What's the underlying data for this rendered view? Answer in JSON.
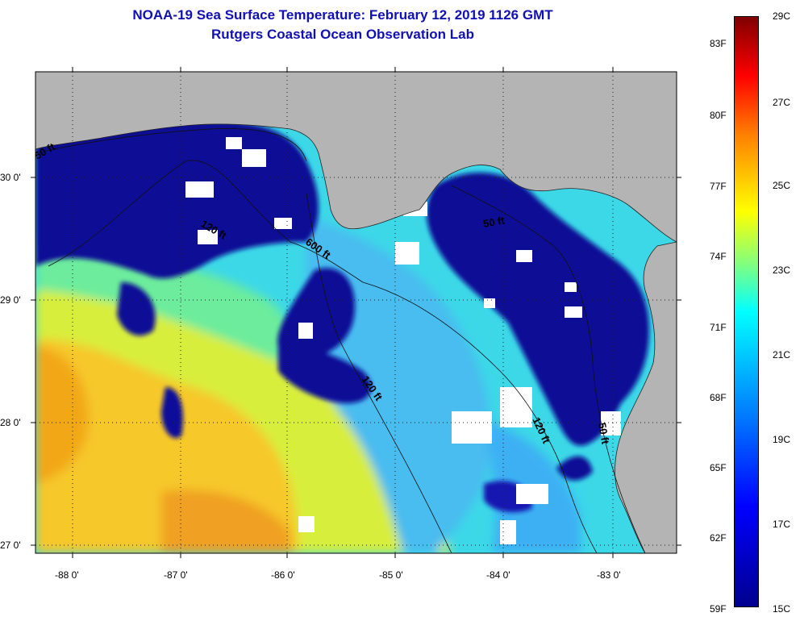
{
  "title": {
    "line1": "NOAA-19 Sea Surface Temperature:  February 12, 2019 1126 GMT",
    "line2": "Rutgers Coastal Ocean Observation Lab"
  },
  "map": {
    "lat_ticks": [
      "30 0'",
      "29 0'",
      "28 0'",
      "27 0'"
    ],
    "lon_ticks": [
      "-88 0'",
      "-87 0'",
      "-86 0'",
      "-85 0'",
      "-84 0'",
      "-83 0'"
    ],
    "contours": [
      "50 ft",
      "120 ft",
      "600 ft",
      "120 ft",
      "50 ft",
      "120 ft",
      "50 ft"
    ],
    "land_color": "#b4b4b4",
    "cloud_color": "#ffffff"
  },
  "colorbar": {
    "fahrenheit": [
      "83F",
      "80F",
      "77F",
      "74F",
      "71F",
      "68F",
      "65F",
      "62F",
      "59F"
    ],
    "celsius": [
      "29C",
      "27C",
      "25C",
      "23C",
      "21C",
      "19C",
      "17C",
      "15C"
    ],
    "min_color": "#00008f",
    "max_color": "#800000"
  }
}
